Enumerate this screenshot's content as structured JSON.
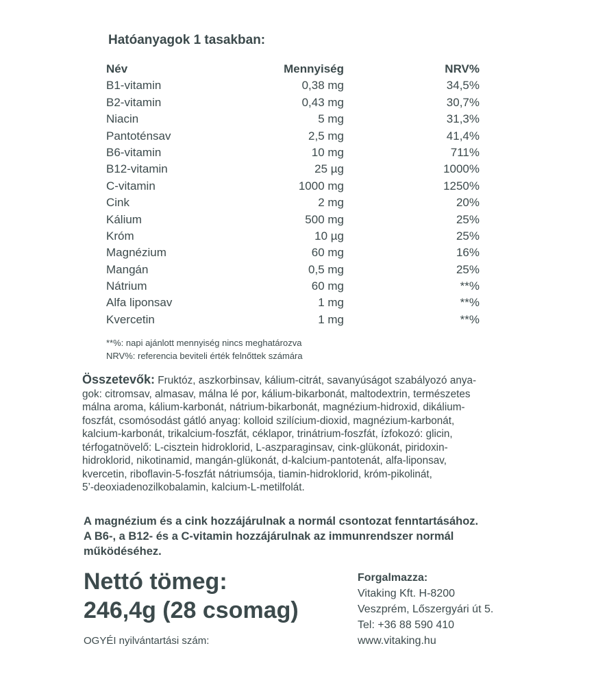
{
  "title": "Hatóanyagok 1 tasakban:",
  "table": {
    "headers": {
      "name": "Név",
      "amount": "Mennyiség",
      "nrv": "NRV%"
    },
    "rows": [
      {
        "name": "B1-vitamin",
        "amount": "0,38 mg",
        "nrv": "34,5%"
      },
      {
        "name": "B2-vitamin",
        "amount": "0,43 mg",
        "nrv": "30,7%"
      },
      {
        "name": "Niacin",
        "amount": "5 mg",
        "nrv": "31,3%"
      },
      {
        "name": "Pantoténsav",
        "amount": "2,5 mg",
        "nrv": "41,4%"
      },
      {
        "name": "B6-vitamin",
        "amount": "10 mg",
        "nrv": "711%"
      },
      {
        "name": "B12-vitamin",
        "amount": "25 µg",
        "nrv": "1000%"
      },
      {
        "name": "C-vitamin",
        "amount": "1000 mg",
        "nrv": "1250%"
      },
      {
        "name": "Cink",
        "amount": "2 mg",
        "nrv": "20%"
      },
      {
        "name": "Kálium",
        "amount": "500 mg",
        "nrv": "25%"
      },
      {
        "name": "Króm",
        "amount": "10 µg",
        "nrv": "25%"
      },
      {
        "name": "Magnézium",
        "amount": "60 mg",
        "nrv": "16%"
      },
      {
        "name": "Mangán",
        "amount": "0,5 mg",
        "nrv": "25%"
      },
      {
        "name": "Nátrium",
        "amount": "60 mg",
        "nrv": "**%"
      },
      {
        "name": "Alfa liponsav",
        "amount": "1 mg",
        "nrv": "**%"
      },
      {
        "name": "Kvercetin",
        "amount": "1 mg",
        "nrv": "**%"
      }
    ]
  },
  "footnotes": [
    "**%: napi ajánlott mennyiség nincs meghatározva",
    "NRV%: referencia beviteli érték felnőttek számára"
  ],
  "ingredients": {
    "label": "Összetevők:",
    "lines": [
      " Fruktóz, aszkorbinsav, kálium-citrát, savanyúságot szabályozó anya-",
      "gok: citromsav, almasav, málna lé por, kálium-bikarbonát, maltodextrin, természetes",
      "málna aroma, kálium-karbonát, nátrium-bikarbonát, magnézium-hidroxid, dikálium-",
      "foszfát, csomósodást gátló anyag: kolloid szilícium-dioxid, magnézium-karbonát,",
      "kalcium-karbonát, trikalcium-foszfát, céklapor, trinátrium-foszfát, ízfokozó: glicin,",
      "térfogatnövelő: L-cisztein hidroklorid, L-aszparaginsav, cink-glükonát, piridoxin-",
      "hidroklorid, nikotinamid, mangán-glükonát, d-kalcium-pantotenát, alfa-liponsav,",
      "kvercetin, riboflavin-5-foszfát nátriumsója, tiamin-hidroklorid, króm-pikolinát,",
      "5’-deoxiadenozilkobalamin, kalcium-L-metilfolát."
    ]
  },
  "claims": [
    "A magnézium és a cink hozzájárulnak a normál csontozat fenntartásához.",
    "A B6-, a B12- és a C-vitamin hozzájárulnak az immunrendszer normál",
    "működéséhez."
  ],
  "net_weight": {
    "line1": "Nettó tömeg:",
    "line2": "246,4g (28 csomag)"
  },
  "registration": "OGYÉI nyilvántartási szám:",
  "distributor": {
    "title": "Forgalmazza:",
    "lines": [
      "Vitaking Kft. H-8200",
      "Veszprém, Lőszergyári út 5.",
      "Tel: +36 88 590 410",
      "www.vitaking.hu"
    ]
  }
}
